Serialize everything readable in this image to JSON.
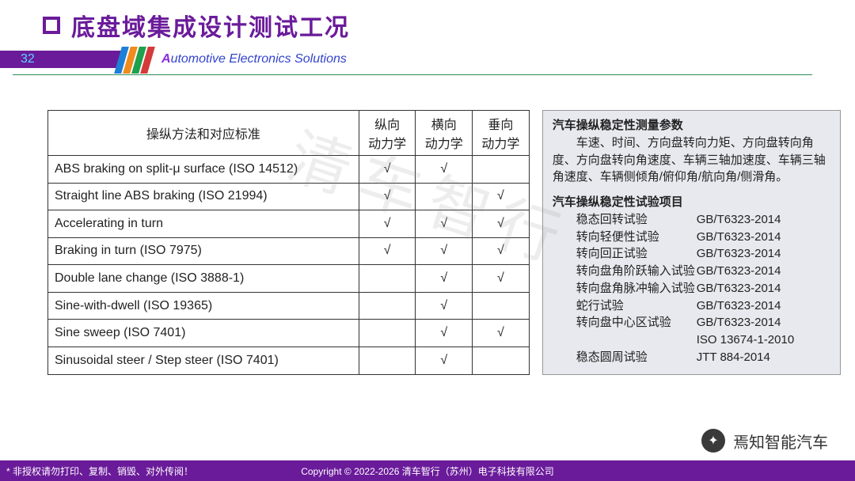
{
  "colors": {
    "brand": "#6a1b9a",
    "accent_cyan": "#5ad6ff",
    "subtitle": "#3344cc",
    "green_rule": "#2e8b57",
    "panel_bg": "#e8e9ee",
    "table_border": "#333333",
    "stripes": [
      "#1e7fd6",
      "#f08b1e",
      "#1fa04a",
      "#d43a3a"
    ]
  },
  "header": {
    "title": "底盘域集成设计测试工况",
    "page_number": "32",
    "subtitle_lead": "A",
    "subtitle_rest": "utomotive Electronics Solutions"
  },
  "watermark_diag": "清车智行",
  "table": {
    "columns": [
      "操纵方法和对应标准",
      "纵向\n动力学",
      "横向\n动力学",
      "垂向\n动力学"
    ],
    "rows": [
      {
        "label": "ABS braking on split-μ surface (ISO 14512)",
        "v": [
          "√",
          "√",
          ""
        ]
      },
      {
        "label": "Straight line ABS braking (ISO 21994)",
        "v": [
          "√",
          "",
          "√"
        ]
      },
      {
        "label": "Accelerating in turn",
        "v": [
          "√",
          "√",
          "√"
        ]
      },
      {
        "label": "Braking in turn (ISO 7975)",
        "v": [
          "√",
          "√",
          "√"
        ]
      },
      {
        "label": "Double lane change (ISO 3888-1)",
        "v": [
          "",
          "√",
          "√"
        ]
      },
      {
        "label": "Sine-with-dwell (ISO 19365)",
        "v": [
          "",
          "√",
          ""
        ]
      },
      {
        "label": "Sine sweep (ISO 7401)",
        "v": [
          "",
          "√",
          "√"
        ]
      },
      {
        "label": "Sinusoidal steer / Step steer (ISO 7401)",
        "v": [
          "",
          "√",
          ""
        ]
      }
    ]
  },
  "panel": {
    "h1": "汽车操纵稳定性测量参数",
    "p1": "车速、时间、方向盘转向力矩、方向盘转向角度、方向盘转向角速度、车辆三轴加速度、车辆三轴角速度、车辆侧倾角/俯仰角/航向角/侧滑角。",
    "h2": "汽车操纵稳定性试验项目",
    "tests": [
      {
        "name": "稳态回转试验",
        "std": "GB/T6323-2014"
      },
      {
        "name": "转向轻便性试验",
        "std": "GB/T6323-2014"
      },
      {
        "name": "转向回正试验",
        "std": "GB/T6323-2014"
      },
      {
        "name": "转向盘角阶跃输入试验",
        "std": "GB/T6323-2014"
      },
      {
        "name": "转向盘角脉冲输入试验",
        "std": "GB/T6323-2014"
      },
      {
        "name": "蛇行试验",
        "std": "GB/T6323-2014"
      },
      {
        "name": "转向盘中心区试验",
        "std": "GB/T6323-2014"
      },
      {
        "name": "",
        "std": "ISO 13674-1-2010"
      },
      {
        "name": "稳态圆周试验",
        "std": "JTT 884-2014"
      }
    ]
  },
  "footer": {
    "left": "* 非授权请勿打印、复制、销毁、对外传阅！",
    "center": "Copyright © 2022-2026 清车智行（苏州）电子科技有限公司"
  },
  "corner_watermark": "焉知智能汽车"
}
